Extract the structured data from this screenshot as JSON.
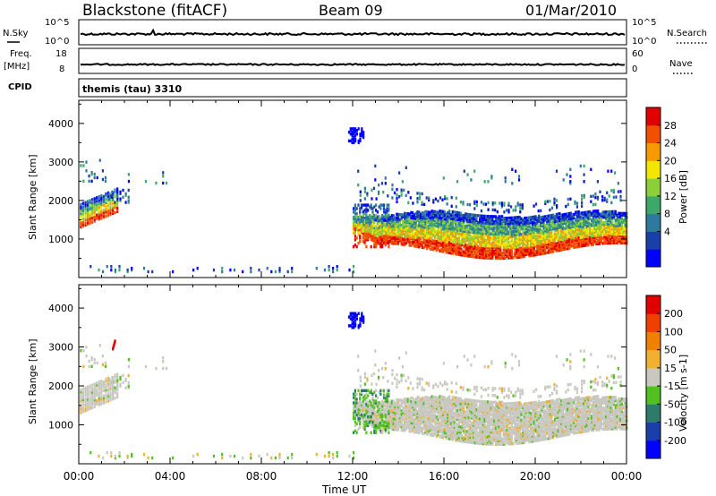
{
  "header": {
    "station": "Blackstone (fitACF)",
    "beam": "Beam 09",
    "date": "01/Mar/2010",
    "cpid_label": "CPID",
    "cpid_value": "themis (tau) 3310"
  },
  "top_panels": {
    "noise": {
      "left_label": "N.Sky",
      "right_label": "N.Search",
      "left_ticks": [
        "10^5",
        "10^0"
      ],
      "right_ticks": [
        "10^5",
        "10^0"
      ]
    },
    "freq": {
      "left_label_1": "Freq.",
      "left_label_2": "[MHz]",
      "right_label": "Nave",
      "left_ticks": [
        "18",
        "8"
      ],
      "right_ticks": [
        "60",
        "0"
      ]
    }
  },
  "colors": {
    "power_scale": [
      "#0000ff",
      "#1a3fa8",
      "#2e7a9e",
      "#3ea86b",
      "#8ccf3a",
      "#f2e600",
      "#f59a00",
      "#f05000",
      "#e00000"
    ],
    "velocity_scale": [
      "#0000ff",
      "#1a3fa8",
      "#2e7a6b",
      "#52c020",
      "#c8c8c0",
      "#f0b030",
      "#f08000",
      "#f04000",
      "#e00000"
    ]
  },
  "chart_data": [
    {
      "type": "heatmap",
      "name": "power-panel",
      "xlabel": "",
      "ylabel": "Slant Range [km]",
      "xlim_hours": [
        0,
        24
      ],
      "ylim_km": [
        0,
        4600
      ],
      "y_ticks": [
        1000,
        2000,
        3000,
        4000
      ],
      "colorbar_label": "Power [dB]",
      "colorbar_ticks": [
        "28",
        "24",
        "20",
        "16",
        "12",
        "8",
        "4"
      ],
      "colorbar_range": [
        0,
        32
      ]
    },
    {
      "type": "heatmap",
      "name": "velocity-panel",
      "xlabel": "Time UT",
      "ylabel": "Slant Range [km]",
      "xlim_hours": [
        0,
        24
      ],
      "ylim_km": [
        0,
        4600
      ],
      "y_ticks": [
        1000,
        2000,
        3000,
        4000
      ],
      "x_ticks": [
        "00:00",
        "04:00",
        "08:00",
        "12:00",
        "16:00",
        "20:00",
        "00:00"
      ],
      "colorbar_label": "Velocity [m s-1]",
      "colorbar_ticks": [
        "200",
        "100",
        "50",
        "15",
        "-15",
        "-50",
        "-100",
        "-200"
      ]
    }
  ]
}
